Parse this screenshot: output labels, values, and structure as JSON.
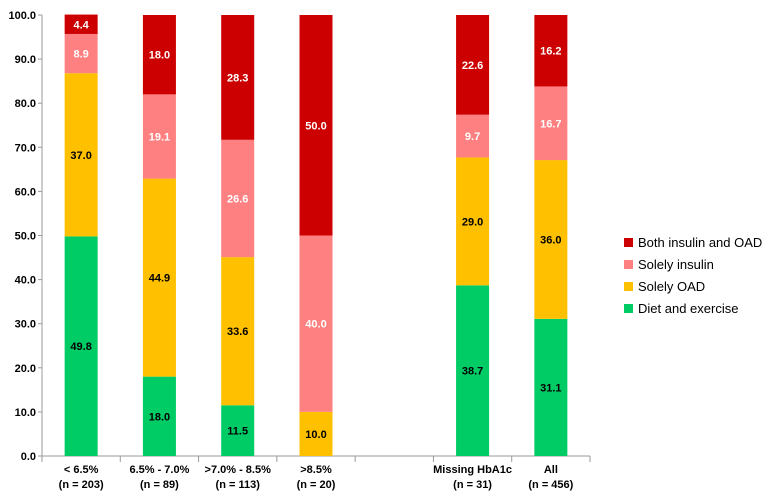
{
  "chart_data": {
    "type": "bar",
    "stacked": true,
    "title": "",
    "xlabel": "",
    "ylabel": "",
    "ylim": [
      0,
      100
    ],
    "yticks": [
      "0.0",
      "10.0",
      "20.0",
      "30.0",
      "40.0",
      "50.0",
      "60.0",
      "70.0",
      "80.0",
      "90.0",
      "100.0"
    ],
    "categories": [
      {
        "line1": "< 6.5%",
        "line2": "(n = 203)"
      },
      {
        "line1": "6.5% - 7.0%",
        "line2": "(n = 89)"
      },
      {
        "line1": ">7.0% - 8.5%",
        "line2": "(n = 113)"
      },
      {
        "line1": ">8.5%",
        "line2": "(n = 20)"
      },
      {
        "line1": "",
        "line2": ""
      },
      {
        "line1": "Missing HbA1c",
        "line2": "(n = 31)"
      },
      {
        "line1": "All",
        "line2": "(n = 456)"
      }
    ],
    "series": [
      {
        "name": "Diet and exercise",
        "color": "#00cc66",
        "label_color": "#000000",
        "values": [
          49.8,
          18.0,
          11.5,
          0,
          null,
          38.7,
          31.1
        ],
        "labels": [
          "49.8",
          "18.0",
          "11.5",
          "",
          "",
          "38.7",
          "31.1"
        ]
      },
      {
        "name": "Solely OAD",
        "color": "#ffc000",
        "label_color": "#000000",
        "values": [
          37.0,
          44.9,
          33.6,
          10.0,
          null,
          29.0,
          36.0
        ],
        "labels": [
          "37.0",
          "44.9",
          "33.6",
          "10.0",
          "",
          "29.0",
          "36.0"
        ]
      },
      {
        "name": "Solely insulin",
        "color": "#ff8080",
        "label_color": "#ffffff",
        "values": [
          8.9,
          19.1,
          26.6,
          40.0,
          null,
          9.7,
          16.7
        ],
        "labels": [
          "8.9",
          "19.1",
          "26.6",
          "40.0",
          "",
          "9.7",
          "16.7"
        ]
      },
      {
        "name": "Both insulin and OAD",
        "color": "#cc0000",
        "label_color": "#ffffff",
        "values": [
          4.4,
          18.0,
          28.3,
          50.0,
          null,
          22.6,
          16.2
        ],
        "labels": [
          "4.4",
          "18.0",
          "28.3",
          "50.0",
          "",
          "22.6",
          "16.2"
        ]
      }
    ],
    "legend": {
      "position": "right",
      "order": [
        "Both insulin and OAD",
        "Solely insulin",
        "Solely OAD",
        "Diet and exercise"
      ]
    }
  }
}
